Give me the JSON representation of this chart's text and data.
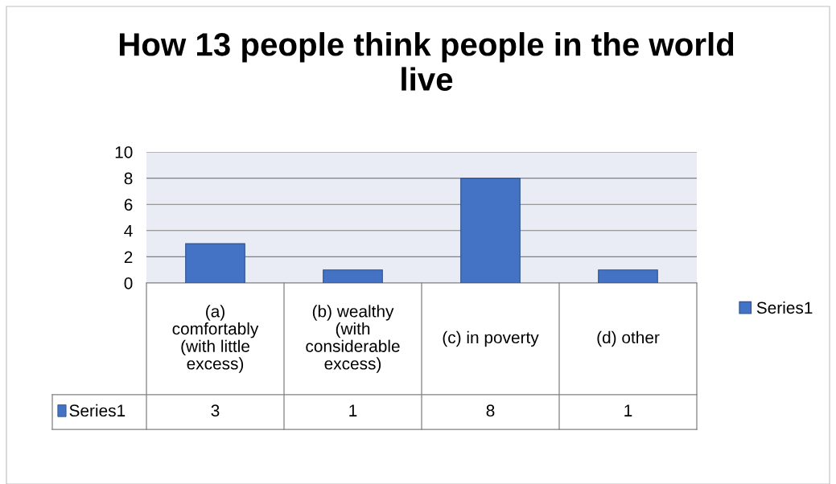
{
  "chart_data": {
    "type": "bar",
    "title": "How 13 people think people in the world\nlive",
    "categories": [
      "(a)\ncomfortably\n(with little\nexcess)",
      "(b) wealthy\n(with\nconsiderable\nexcess)",
      "(c) in poverty",
      "(d) other"
    ],
    "series": [
      {
        "name": "Series1",
        "color": "#4472c4",
        "values": [
          3,
          1,
          8,
          1
        ]
      }
    ],
    "ylim": [
      0,
      10
    ],
    "yticks": [
      0,
      2,
      4,
      6,
      8,
      10
    ],
    "grid": "y",
    "legend": "right",
    "data_labels": true
  }
}
